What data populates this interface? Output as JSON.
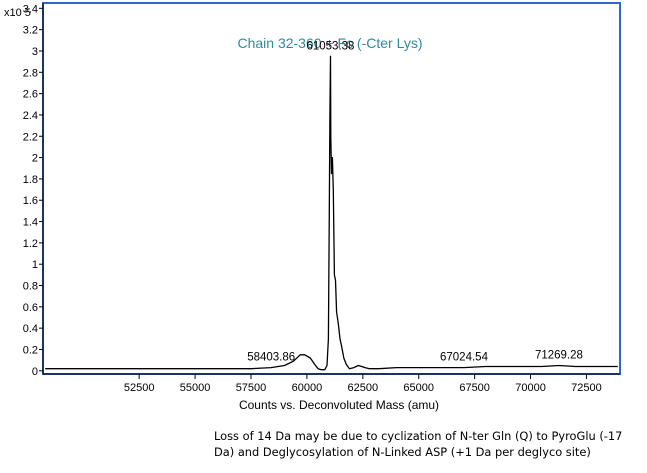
{
  "chart_data": {
    "type": "line",
    "title": "Chain 32-360 + Fc (-Cter Lys)",
    "xlabel": "Counts vs. Deconvoluted Mass (amu)",
    "ylabel": "",
    "y_multiplier": "x10 5",
    "xlim": [
      48200,
      74000
    ],
    "ylim": [
      -0.03,
      3.45
    ],
    "x_ticks": [
      52500,
      55000,
      57500,
      60000,
      62500,
      65000,
      67500,
      70000,
      72500
    ],
    "y_ticks": [
      0,
      0.2,
      0.4,
      0.6,
      0.8,
      1,
      1.2,
      1.4,
      1.6,
      1.8,
      2,
      2.2,
      2.4,
      2.6,
      2.8,
      3,
      3.2,
      3.4
    ],
    "grid": false,
    "colors": {
      "trace": "#000000",
      "frame": "#3366cc",
      "title": "#2e8b9a"
    },
    "series": [
      {
        "x": [
          48300,
          50000,
          52000,
          54000,
          56000,
          57500,
          58400,
          59000,
          59400,
          59700,
          59900,
          60150,
          60350,
          60500,
          60650,
          60800,
          60900,
          60960,
          61000,
          61030,
          61053.38,
          61070,
          61100,
          61140,
          61180,
          61230,
          61280,
          61330,
          61400,
          61480,
          61560,
          61650,
          61760,
          61900,
          62100,
          62300,
          62450,
          62600,
          62800,
          63200,
          64000,
          65500,
          67024.54,
          68000,
          69500,
          70500,
          71269.28,
          72000,
          73000,
          73900
        ],
        "y": [
          0.02,
          0.02,
          0.02,
          0.02,
          0.02,
          0.02,
          0.03,
          0.05,
          0.09,
          0.15,
          0.15,
          0.12,
          0.06,
          0.02,
          0.01,
          0.01,
          0.05,
          0.3,
          1.5,
          2.4,
          2.95,
          2.2,
          1.85,
          2.0,
          1.7,
          0.9,
          0.85,
          0.55,
          0.45,
          0.3,
          0.22,
          0.12,
          0.06,
          0.02,
          0.03,
          0.05,
          0.04,
          0.03,
          0.02,
          0.02,
          0.03,
          0.03,
          0.03,
          0.04,
          0.04,
          0.04,
          0.05,
          0.04,
          0.04,
          0.04
        ]
      }
    ],
    "annotations": [
      {
        "text": "61053.38",
        "x": 61053.38,
        "y": 2.95
      },
      {
        "text": "58403.86",
        "x": 58403.86,
        "y": 0.03
      },
      {
        "text": "67024.54",
        "x": 67024.54,
        "y": 0.03
      },
      {
        "text": "71269.28",
        "x": 71269.28,
        "y": 0.05
      }
    ]
  },
  "caption": "Loss of 14 Da may be due to cyclization of N-ter Gln (Q) to PyroGlu (-17 Da) and Deglycosylation of N-Linked ASP (+1 Da per deglyco site)"
}
